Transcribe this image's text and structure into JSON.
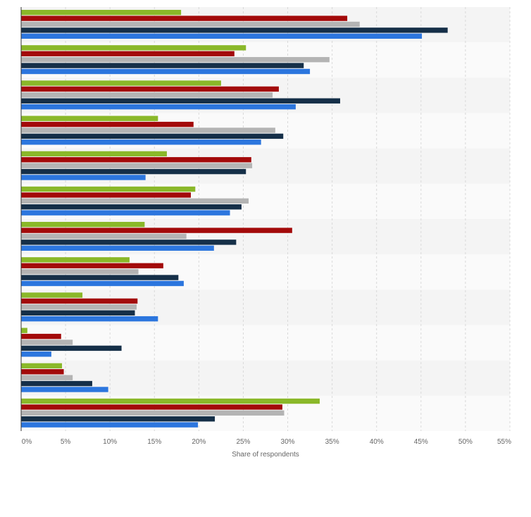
{
  "chart_data": {
    "type": "bar",
    "orientation": "horizontal",
    "title": "",
    "xlabel": "Share of respondents",
    "ylabel": "",
    "xlim": [
      0,
      55
    ],
    "x_ticks": [
      0,
      5,
      10,
      15,
      20,
      25,
      30,
      35,
      40,
      45,
      50,
      55
    ],
    "tick_labels": [
      "0%",
      "5%",
      "10%",
      "15%",
      "20%",
      "25%",
      "30%",
      "35%",
      "40%",
      "45%",
      "50%",
      "55%"
    ],
    "grid": true,
    "legend": "none",
    "categories": [
      "",
      "",
      "",
      "",
      "",
      "",
      "",
      "",
      "",
      "",
      "",
      ""
    ],
    "series": [
      {
        "color": "#8ab829",
        "values": [
          18,
          25.3,
          22.5,
          15.4,
          16.4,
          19.6,
          13.9,
          12.2,
          6.9,
          0.7,
          4.6,
          33.6
        ]
      },
      {
        "color": "#a30a0a",
        "values": [
          36.7,
          24,
          29,
          19.4,
          25.9,
          19.1,
          30.5,
          16,
          13.1,
          4.5,
          4.8,
          29.4
        ]
      },
      {
        "color": "#b4b4b4",
        "values": [
          38.1,
          34.7,
          28.3,
          28.6,
          26,
          25.6,
          18.6,
          13.2,
          13,
          5.8,
          5.8,
          29.6
        ]
      },
      {
        "color": "#152f48",
        "values": [
          48,
          31.8,
          35.9,
          29.5,
          25.3,
          24.8,
          24.2,
          17.7,
          12.8,
          11.3,
          8,
          21.8
        ]
      },
      {
        "color": "#2c76de",
        "values": [
          45.1,
          32.5,
          30.9,
          27,
          14,
          23.5,
          21.7,
          18.3,
          15.4,
          3.4,
          9.8,
          19.9
        ]
      }
    ]
  }
}
